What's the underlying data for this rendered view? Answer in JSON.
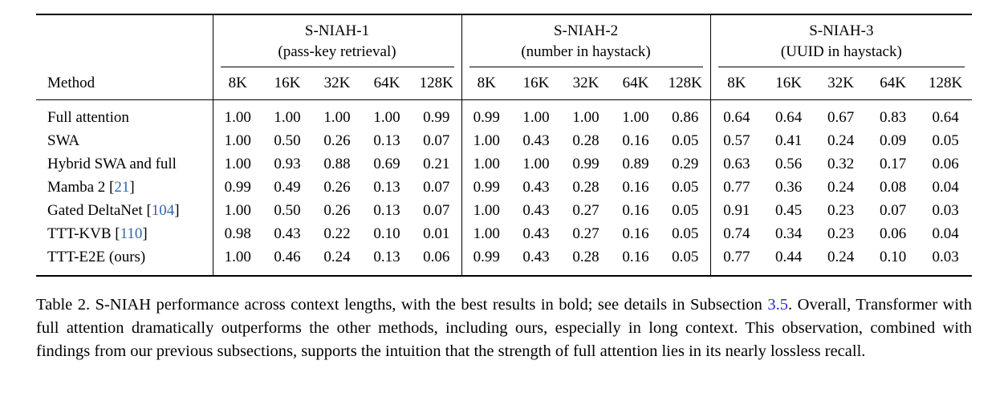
{
  "table": {
    "method_header": "Method",
    "context_lengths": [
      "8K",
      "16K",
      "32K",
      "64K",
      "128K"
    ],
    "groups": [
      {
        "name": "S-NIAH-1",
        "subtitle": "(pass-key retrieval)"
      },
      {
        "name": "S-NIAH-2",
        "subtitle": "(number in haystack)"
      },
      {
        "name": "S-NIAH-3",
        "subtitle": "(UUID in haystack)"
      }
    ],
    "rows": [
      {
        "method": "Full attention",
        "citation": null,
        "values": [
          "1.00",
          "1.00",
          "1.00",
          "1.00",
          "0.99",
          "0.99",
          "1.00",
          "1.00",
          "1.00",
          "0.86",
          "0.64",
          "0.64",
          "0.67",
          "0.83",
          "0.64"
        ],
        "bold": [
          true,
          true,
          true,
          true,
          true,
          false,
          true,
          true,
          true,
          true,
          false,
          true,
          true,
          true,
          true
        ]
      },
      {
        "method": "SWA",
        "citation": null,
        "values": [
          "1.00",
          "0.50",
          "0.26",
          "0.13",
          "0.07",
          "1.00",
          "0.43",
          "0.28",
          "0.16",
          "0.05",
          "0.57",
          "0.41",
          "0.24",
          "0.09",
          "0.05"
        ],
        "bold": [
          true,
          false,
          false,
          false,
          false,
          true,
          false,
          false,
          false,
          false,
          false,
          false,
          false,
          false,
          false
        ]
      },
      {
        "method": "Hybrid SWA and full",
        "citation": null,
        "values": [
          "1.00",
          "0.93",
          "0.88",
          "0.69",
          "0.21",
          "1.00",
          "1.00",
          "0.99",
          "0.89",
          "0.29",
          "0.63",
          "0.56",
          "0.32",
          "0.17",
          "0.06"
        ],
        "bold": [
          true,
          false,
          false,
          false,
          false,
          true,
          true,
          false,
          false,
          false,
          false,
          false,
          false,
          false,
          false
        ]
      },
      {
        "method": "Mamba 2",
        "citation": "21",
        "values": [
          "0.99",
          "0.49",
          "0.26",
          "0.13",
          "0.07",
          "0.99",
          "0.43",
          "0.28",
          "0.16",
          "0.05",
          "0.77",
          "0.36",
          "0.24",
          "0.08",
          "0.04"
        ],
        "bold": [
          false,
          false,
          false,
          false,
          false,
          false,
          false,
          false,
          false,
          false,
          false,
          false,
          false,
          false,
          false
        ]
      },
      {
        "method": "Gated DeltaNet",
        "citation": "104",
        "values": [
          "1.00",
          "0.50",
          "0.26",
          "0.13",
          "0.07",
          "1.00",
          "0.43",
          "0.27",
          "0.16",
          "0.05",
          "0.91",
          "0.45",
          "0.23",
          "0.07",
          "0.03"
        ],
        "bold": [
          true,
          false,
          false,
          false,
          false,
          true,
          false,
          false,
          false,
          false,
          true,
          false,
          false,
          false,
          false
        ]
      },
      {
        "method": "TTT-KVB",
        "citation": "110",
        "values": [
          "0.98",
          "0.43",
          "0.22",
          "0.10",
          "0.01",
          "1.00",
          "0.43",
          "0.27",
          "0.16",
          "0.05",
          "0.74",
          "0.34",
          "0.23",
          "0.06",
          "0.04"
        ],
        "bold": [
          false,
          false,
          false,
          false,
          false,
          true,
          false,
          false,
          false,
          false,
          false,
          false,
          false,
          false,
          false
        ]
      },
      {
        "method": "TTT-E2E (ours)",
        "citation": null,
        "values": [
          "1.00",
          "0.46",
          "0.24",
          "0.13",
          "0.06",
          "0.99",
          "0.43",
          "0.28",
          "0.16",
          "0.05",
          "0.77",
          "0.44",
          "0.24",
          "0.10",
          "0.03"
        ],
        "bold": [
          true,
          false,
          false,
          false,
          false,
          false,
          false,
          false,
          false,
          false,
          false,
          false,
          false,
          false,
          false
        ]
      }
    ]
  },
  "caption": {
    "before_link": "Table 2. S-NIAH performance across context lengths, with the best results in bold; see details in Subsection ",
    "link": "3.5",
    "after_link": ". Overall, Transformer with full attention dramatically outperforms the other methods, including ours, especially in long context. This observation, combined with findings from our previous subsections, supports the intuition that the strength of full attention lies in its nearly lossless recall."
  },
  "colors": {
    "text": "#000000",
    "rule": "#000000",
    "citation_link": "#3465a8",
    "section_link": "#2b2bd9",
    "background": "#ffffff"
  }
}
